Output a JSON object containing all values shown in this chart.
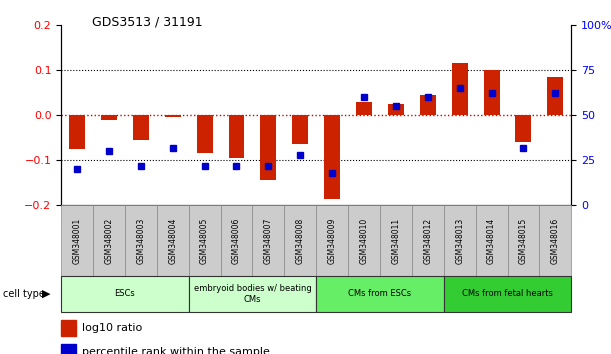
{
  "title": "GDS3513 / 31191",
  "samples": [
    "GSM348001",
    "GSM348002",
    "GSM348003",
    "GSM348004",
    "GSM348005",
    "GSM348006",
    "GSM348007",
    "GSM348008",
    "GSM348009",
    "GSM348010",
    "GSM348011",
    "GSM348012",
    "GSM348013",
    "GSM348014",
    "GSM348015",
    "GSM348016"
  ],
  "log10_ratio": [
    -0.075,
    -0.01,
    -0.055,
    -0.005,
    -0.085,
    -0.095,
    -0.145,
    -0.065,
    -0.185,
    0.03,
    0.025,
    0.045,
    0.115,
    0.1,
    -0.06,
    0.085
  ],
  "percentile_rank": [
    20,
    30,
    22,
    32,
    22,
    22,
    22,
    28,
    18,
    60,
    55,
    60,
    65,
    62,
    32,
    62
  ],
  "ylim": [
    -0.2,
    0.2
  ],
  "y2lim": [
    0,
    100
  ],
  "yticks": [
    -0.2,
    -0.1,
    0.0,
    0.1,
    0.2
  ],
  "y2ticks": [
    0,
    25,
    50,
    75,
    100
  ],
  "y2ticklabels": [
    "0",
    "25",
    "50",
    "75",
    "100%"
  ],
  "bar_color": "#cc2200",
  "dot_color": "#0000cc",
  "zero_line_color": "#cc0000",
  "hgrid_color": "#000000",
  "cell_types": [
    {
      "label": "ESCs",
      "start": 0,
      "end": 3,
      "color": "#ccffcc"
    },
    {
      "label": "embryoid bodies w/ beating\nCMs",
      "start": 4,
      "end": 7,
      "color": "#ccffcc"
    },
    {
      "label": "CMs from ESCs",
      "start": 8,
      "end": 11,
      "color": "#66ee66"
    },
    {
      "label": "CMs from fetal hearts",
      "start": 12,
      "end": 15,
      "color": "#33cc33"
    }
  ],
  "bg_color": "#ffffff",
  "plot_bg": "#ffffff",
  "label_box_color": "#cccccc",
  "legend_log10_label": "log10 ratio",
  "legend_pct_label": "percentile rank within the sample"
}
